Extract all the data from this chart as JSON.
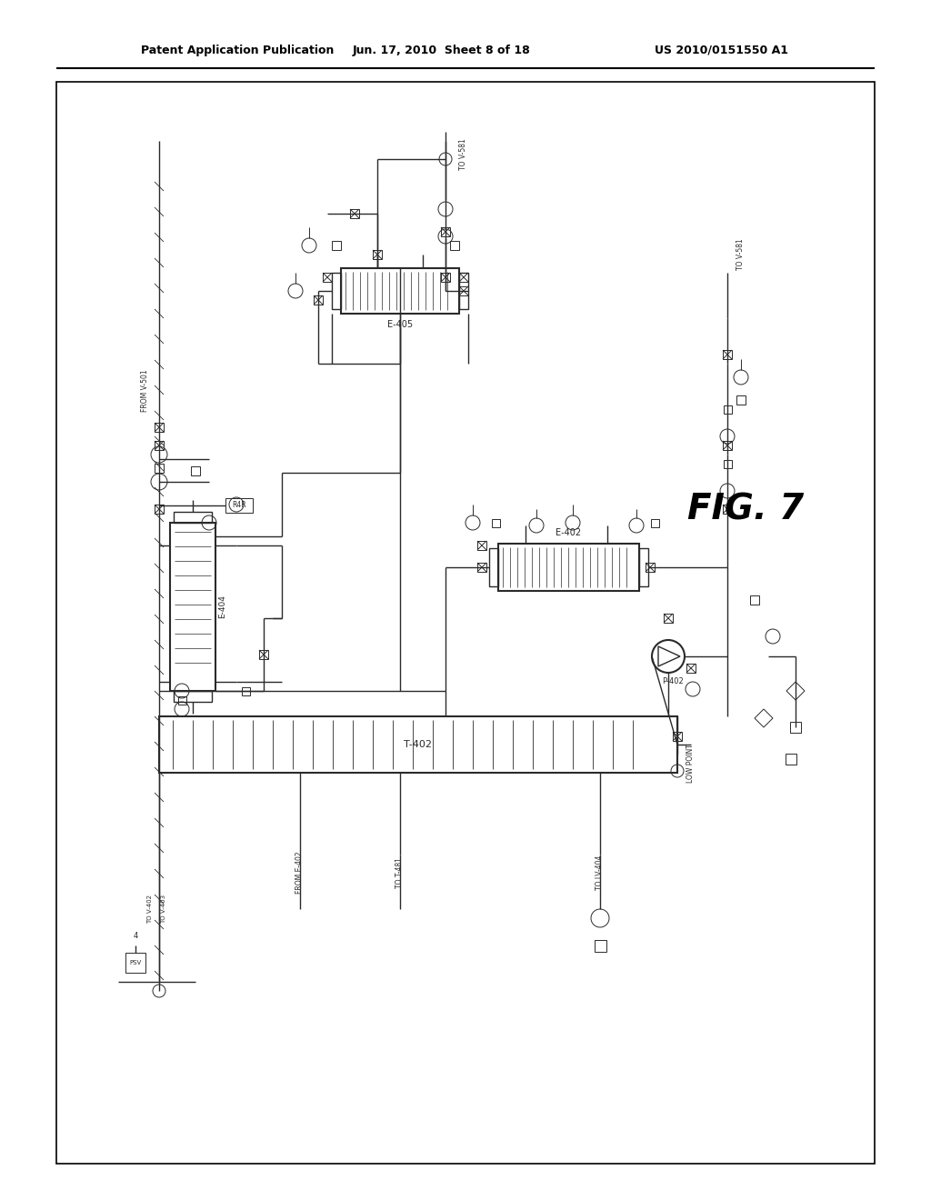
{
  "bg_color": "#ffffff",
  "header_text": "Patent Application Publication",
  "header_date": "Jun. 17, 2010  Sheet 8 of 18",
  "header_patent": "US 2010/0151550 A1",
  "fig_label": "FIG. 7",
  "dc": "#2a2a2a",
  "figsize": [
    10.24,
    13.2
  ],
  "dpi": 100
}
